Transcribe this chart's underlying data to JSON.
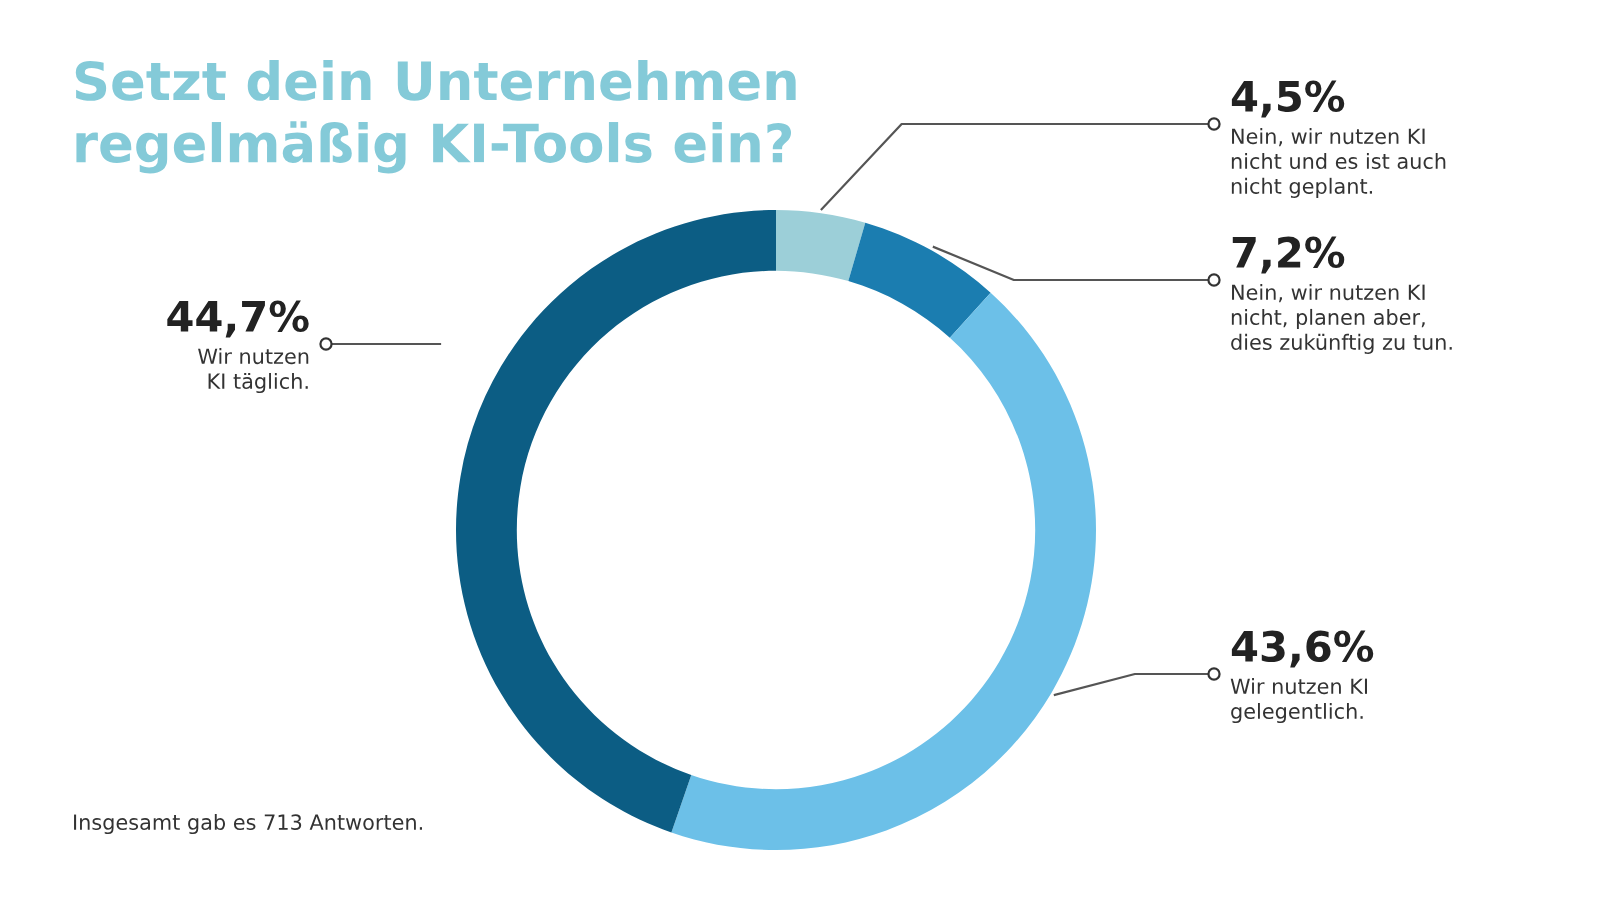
{
  "chart_data": {
    "type": "donut",
    "title": "Setzt dein Unternehmen\nregelmäßig KI-Tools ein?",
    "categories": [
      "Nein, wir nutzen KI\nnicht und es ist auch\nnicht geplant.",
      "Nein, wir nutzen KI\nnicht, planen aber,\ndies zukünftig zu tun.",
      "Wir nutzen KI\ngelegentlich.",
      "Wir nutzen\nKI täglich."
    ],
    "values": [
      4.5,
      7.2,
      43.6,
      44.7
    ],
    "value_labels": [
      "4,5%",
      "7,2%",
      "43,6%",
      "44,7%"
    ],
    "colors": [
      "#9ccfd8",
      "#1b7db0",
      "#6cc0e8",
      "#0c5d84"
    ],
    "annotations": [
      "Insgesamt gab es 713 Antworten."
    ],
    "legend": false
  }
}
